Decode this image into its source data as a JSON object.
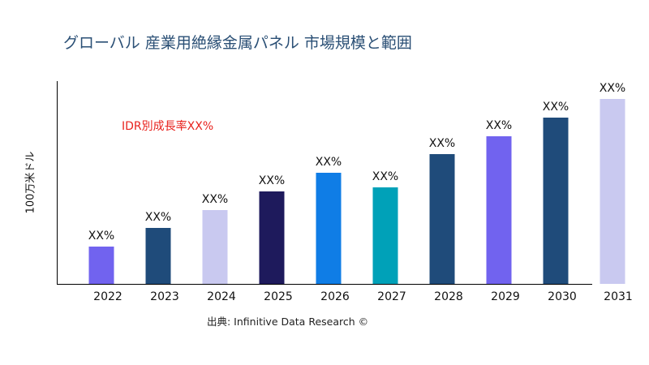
{
  "chart_data": {
    "type": "bar",
    "title": "グローバル 産業用絶縁金属パネル 市場規模と範囲",
    "annotation": "IDR別成長率XX%",
    "ylabel": "100万米ドル",
    "xlabel": "",
    "source": "出典: Infinitive Data Research ©",
    "categories": [
      "2022",
      "2023",
      "2024",
      "2025",
      "2026",
      "2027",
      "2028",
      "2029",
      "2030",
      "2031"
    ],
    "values": [
      46,
      69,
      91,
      114,
      137,
      119,
      160,
      182,
      205,
      228
    ],
    "ylim": [
      0,
      250
    ],
    "data_labels": [
      "XX%",
      "XX%",
      "XX%",
      "XX%",
      "XX%",
      "XX%",
      "XX%",
      "XX%",
      "XX%",
      "XX%"
    ],
    "colors": [
      "#7163ef",
      "#1f4b7a",
      "#c9c9f0",
      "#1e1a5c",
      "#0f7de6",
      "#00a1b8",
      "#1f4b7a",
      "#7163ef",
      "#1f4b7a",
      "#c9c9f0"
    ],
    "grid": false,
    "legend": "none"
  }
}
